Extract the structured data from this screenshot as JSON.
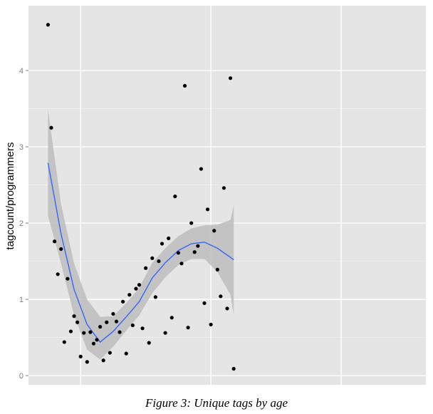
{
  "caption": "Figure 3: Unique tags by age",
  "chart_data": {
    "type": "scatter",
    "title": "",
    "xlabel": "",
    "ylabel": "tagcount/programmers",
    "xlim": [
      -0.3,
      5.8
    ],
    "ylim": [
      -0.12,
      4.85
    ],
    "y_ticks": [
      0,
      1,
      2,
      3,
      4
    ],
    "y_tick_labels": [
      "0",
      "1",
      "2",
      "3",
      "4"
    ],
    "x_gridlines": [
      0.5,
      2.5,
      4.5
    ],
    "x_tick_labels": [],
    "grid": true,
    "background": "#e5e5e5",
    "grid_color": "#ffffff",
    "point_color": "#000000",
    "smooth_color": "#3366ff",
    "band_color": "#bdbdbd",
    "points": [
      [
        0.0,
        4.6
      ],
      [
        0.05,
        3.25
      ],
      [
        0.1,
        1.76
      ],
      [
        0.15,
        1.33
      ],
      [
        0.2,
        1.66
      ],
      [
        0.25,
        0.44
      ],
      [
        0.3,
        1.27
      ],
      [
        0.35,
        0.58
      ],
      [
        0.4,
        0.78
      ],
      [
        0.45,
        0.7
      ],
      [
        0.5,
        0.25
      ],
      [
        0.55,
        0.56
      ],
      [
        0.6,
        0.18
      ],
      [
        0.65,
        0.57
      ],
      [
        0.7,
        0.42
      ],
      [
        0.75,
        0.47
      ],
      [
        0.8,
        0.64
      ],
      [
        0.85,
        0.2
      ],
      [
        0.9,
        0.7
      ],
      [
        0.95,
        0.3
      ],
      [
        1.0,
        0.81
      ],
      [
        1.05,
        0.71
      ],
      [
        1.1,
        0.57
      ],
      [
        1.15,
        0.97
      ],
      [
        1.2,
        0.29
      ],
      [
        1.25,
        1.06
      ],
      [
        1.3,
        0.66
      ],
      [
        1.35,
        1.14
      ],
      [
        1.4,
        1.19
      ],
      [
        1.45,
        0.62
      ],
      [
        1.5,
        1.41
      ],
      [
        1.55,
        0.43
      ],
      [
        1.6,
        1.54
      ],
      [
        1.65,
        1.03
      ],
      [
        1.7,
        1.5
      ],
      [
        1.75,
        1.73
      ],
      [
        1.8,
        0.56
      ],
      [
        1.85,
        1.8
      ],
      [
        1.9,
        0.76
      ],
      [
        1.95,
        2.35
      ],
      [
        2.0,
        1.61
      ],
      [
        2.05,
        1.47
      ],
      [
        2.1,
        3.8
      ],
      [
        2.15,
        0.63
      ],
      [
        2.2,
        2.0
      ],
      [
        2.25,
        1.62
      ],
      [
        2.3,
        1.7
      ],
      [
        2.35,
        2.71
      ],
      [
        2.4,
        0.95
      ],
      [
        2.45,
        2.18
      ],
      [
        2.5,
        0.67
      ],
      [
        2.55,
        1.9
      ],
      [
        2.6,
        1.39
      ],
      [
        2.65,
        1.04
      ],
      [
        2.7,
        2.46
      ],
      [
        2.75,
        0.88
      ],
      [
        2.8,
        3.9
      ],
      [
        2.85,
        0.09
      ]
    ],
    "smooth": {
      "x": [
        0.0,
        0.2,
        0.4,
        0.6,
        0.8,
        1.0,
        1.2,
        1.4,
        1.6,
        1.8,
        2.0,
        2.2,
        2.4,
        2.6,
        2.8,
        2.85
      ],
      "fit": [
        2.79,
        1.86,
        1.13,
        0.67,
        0.44,
        0.58,
        0.77,
        0.97,
        1.28,
        1.48,
        1.64,
        1.73,
        1.75,
        1.67,
        1.55,
        1.52
      ],
      "lower": [
        2.09,
        1.47,
        0.79,
        0.34,
        0.21,
        0.38,
        0.59,
        0.79,
        1.08,
        1.29,
        1.45,
        1.53,
        1.53,
        1.36,
        1.06,
        0.8
      ],
      "upper": [
        3.49,
        2.25,
        1.47,
        1.0,
        0.77,
        0.78,
        0.95,
        1.15,
        1.48,
        1.67,
        1.83,
        1.93,
        1.97,
        1.98,
        2.04,
        2.23
      ]
    }
  }
}
